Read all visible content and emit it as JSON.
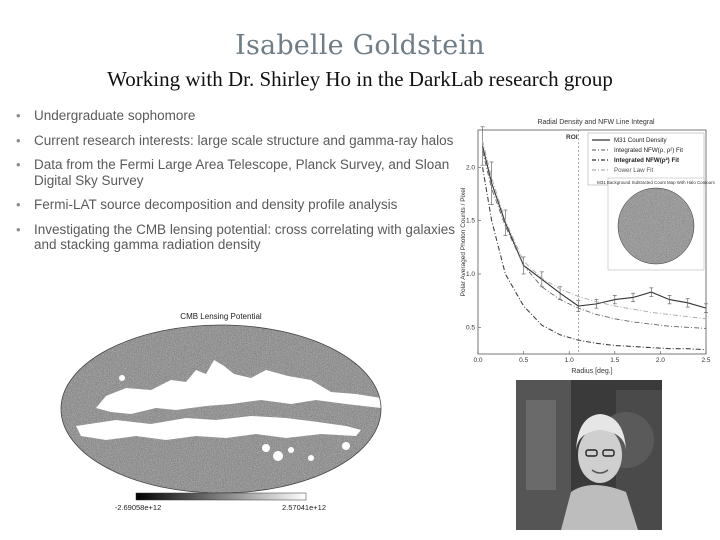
{
  "slide": {
    "title": "Isabelle Goldstein",
    "subtitle": "Working with Dr. Shirley Ho in the DarkLab research group",
    "bullets": [
      "Undergraduate sophomore",
      "Current research interests: large scale structure and gamma-ray halos",
      "Data from the Fermi Large Area Telescope, Planck Survey, and Sloan Digital Sky Survey",
      "Fermi-LAT source decomposition and density profile analysis",
      "Investigating the CMB lensing potential: cross correlating with galaxies and stacking  gamma radiation density"
    ]
  },
  "cmb_map": {
    "title": "CMB Lensing Potential",
    "colorbar_min": "-2.69058e+12",
    "colorbar_max": "2.57041e+12"
  },
  "chart_data": {
    "type": "line",
    "title": "Radial Density and NFW Line Integral",
    "xlabel": "Radius [deg.]",
    "ylabel": "Polar Averaged Photon Counts / Pixel",
    "xlim": [
      0,
      2.5
    ],
    "ylim": [
      0.25,
      2.35
    ],
    "xticks": [
      "0.0",
      "0.5",
      "1.0",
      "1.5",
      "2.0",
      "2.5"
    ],
    "yticks": [
      "0.5",
      "1.0",
      "1.5",
      "2.0"
    ],
    "roi_label": "ROI",
    "roi_x": 1.1,
    "inset_title": "M31 Background Subtracted Count Map With Halo Contours",
    "legend_position": "top-right",
    "series": [
      {
        "name": "M31 Count Density",
        "style": "solid",
        "x": [
          0.05,
          0.15,
          0.3,
          0.5,
          0.7,
          0.9,
          1.1,
          1.3,
          1.5,
          1.7,
          1.9,
          2.1,
          2.3,
          2.5
        ],
        "y": [
          2.2,
          1.85,
          1.48,
          1.08,
          0.95,
          0.82,
          0.7,
          0.72,
          0.76,
          0.78,
          0.83,
          0.76,
          0.73,
          0.68
        ],
        "err": [
          0.18,
          0.2,
          0.12,
          0.08,
          0.07,
          0.06,
          0.05,
          0.04,
          0.04,
          0.04,
          0.04,
          0.04,
          0.04,
          0.04
        ]
      },
      {
        "name": "Integrated NFW(ρ, ρ²) Fit",
        "style": "dashdot",
        "x": [
          0.05,
          0.15,
          0.3,
          0.5,
          0.7,
          0.9,
          1.1,
          1.3,
          1.5,
          1.7,
          1.9,
          2.1,
          2.3,
          2.5
        ],
        "y": [
          2.15,
          1.8,
          1.45,
          1.08,
          0.88,
          0.76,
          0.68,
          0.62,
          0.58,
          0.55,
          0.53,
          0.51,
          0.5,
          0.49
        ]
      },
      {
        "name": "Integrated NFW(ρ²) Fit",
        "style": "dashdot-dark",
        "x": [
          0.05,
          0.15,
          0.3,
          0.5,
          0.7,
          0.9,
          1.1,
          1.3,
          1.5,
          1.7,
          1.9,
          2.1,
          2.3,
          2.5
        ],
        "y": [
          2.0,
          1.5,
          1.0,
          0.7,
          0.52,
          0.43,
          0.38,
          0.35,
          0.33,
          0.32,
          0.31,
          0.3,
          0.3,
          0.29
        ]
      },
      {
        "name": "Power Law Fit",
        "style": "dashdot-light",
        "x": [
          0.05,
          0.15,
          0.3,
          0.5,
          0.7,
          0.9,
          1.1,
          1.3,
          1.5,
          1.7,
          1.9,
          2.1,
          2.3,
          2.5
        ],
        "y": [
          2.25,
          1.9,
          1.5,
          1.12,
          0.96,
          0.86,
          0.79,
          0.74,
          0.7,
          0.67,
          0.64,
          0.62,
          0.6,
          0.58
        ]
      }
    ]
  },
  "colors": {
    "title": "#6f7e86",
    "bullet_text": "#5a5a5a",
    "chart_line": "#333333"
  }
}
